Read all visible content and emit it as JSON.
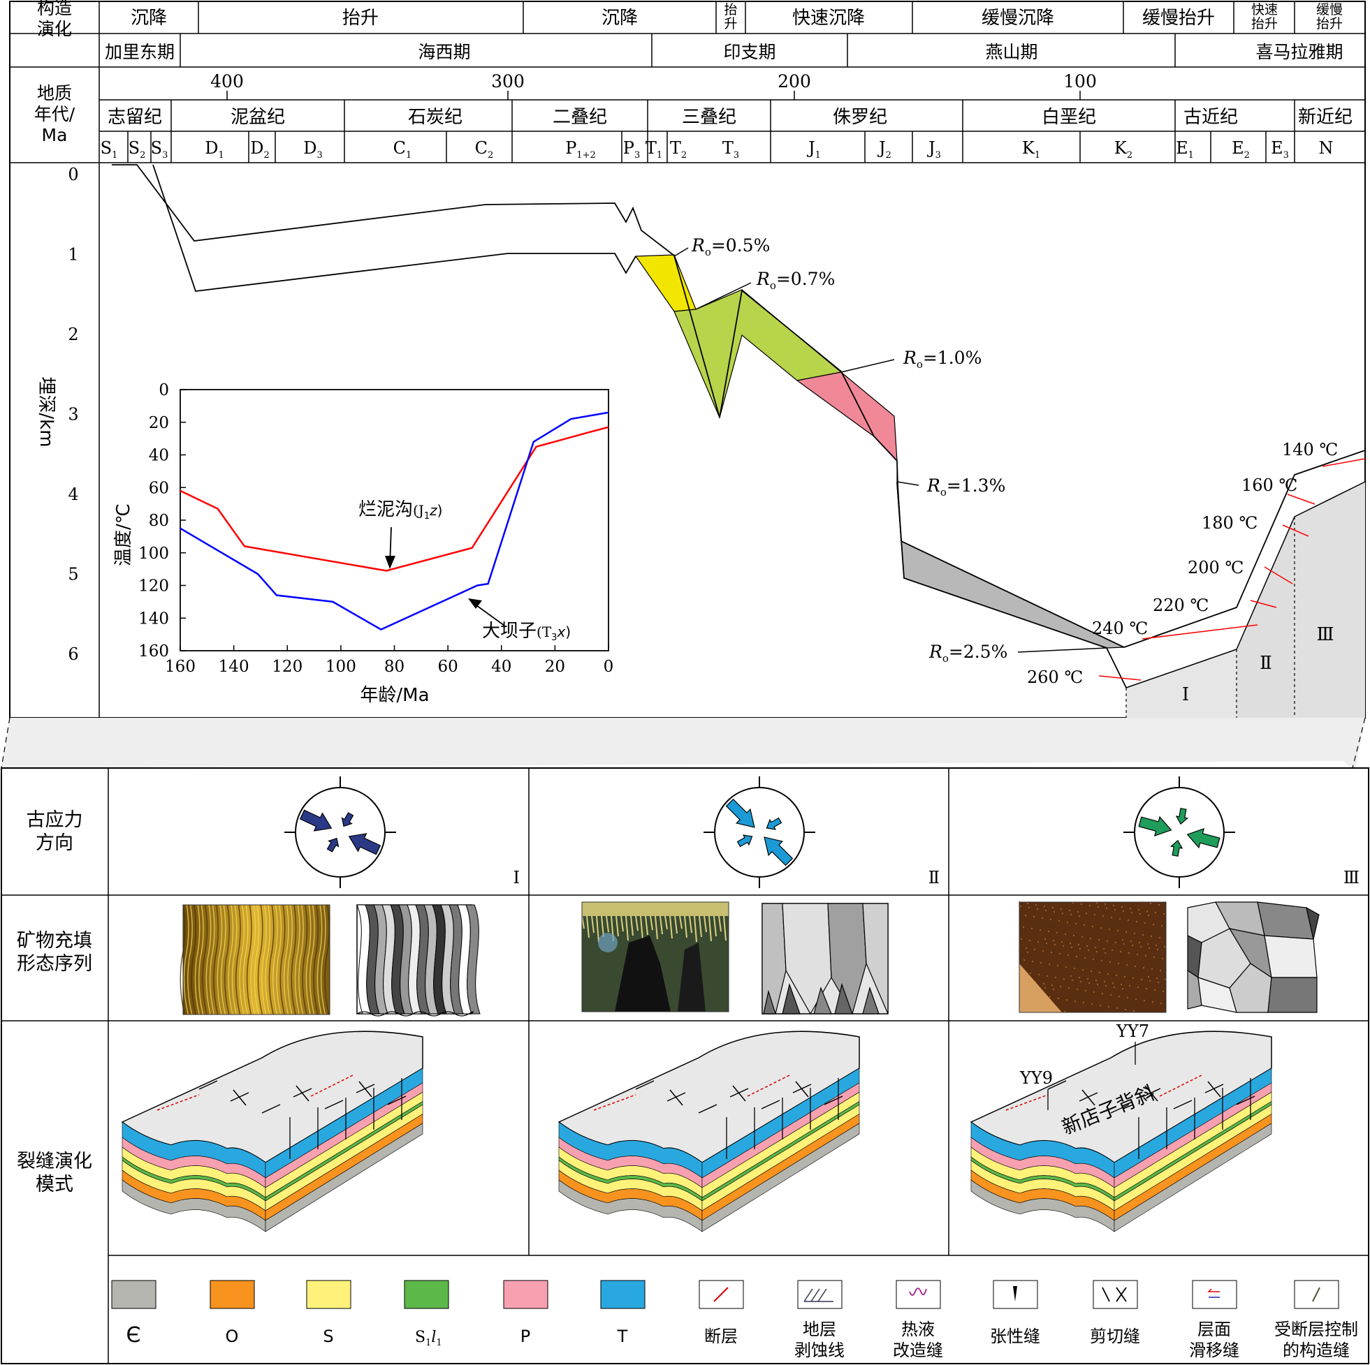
{
  "colors": {
    "ro05": "#f2e600",
    "ro07": "#b8d44a",
    "ro10": "#f08898",
    "ro13": "#b8b8b8",
    "red_curve": "#ff0000",
    "blue_curve": "#0000ff",
    "strat_cambrian": "#b5b5b0",
    "strat_O": "#f7931e",
    "strat_S": "#fff27a",
    "strat_S1l1": "#5cb848",
    "strat_P": "#f7a0b0",
    "strat_T": "#29a8e0",
    "stress_I": "#2b3a87",
    "stress_II": "#1b9ad6",
    "stress_III": "#1e9e5a"
  },
  "top_table": {
    "row1_header": "构造\n演化",
    "row1_cells": [
      "沉降",
      "抬升",
      "沉降",
      "抬\n升",
      "快速沉降",
      "缓慢沉降",
      "缓慢抬升",
      "快速\n抬升",
      "缓慢\n抬升"
    ],
    "row2_cells": [
      "加里东期",
      "海西期",
      "印支期",
      "燕山期",
      "喜马拉雅期"
    ],
    "time_header": "地质\n年代/\nMa",
    "age_ticks": [
      "400",
      "300",
      "200",
      "100"
    ],
    "periods": [
      "志留纪",
      "泥盆纪",
      "石炭纪",
      "二叠纪",
      "三叠纪",
      "侏罗纪",
      "白垩纪",
      "古近纪",
      "新近纪"
    ],
    "epochs": [
      "S1",
      "S2",
      "S3",
      "D1",
      "D2",
      "D3",
      "C1",
      "C2",
      "P1+2",
      "P3",
      "T1",
      "T2",
      "T3",
      "J1",
      "J2",
      "J3",
      "K1",
      "K2",
      "E1",
      "E2",
      "E3",
      "N"
    ]
  },
  "burial_chart": {
    "ylabel": "埋深/km",
    "yticks": [
      "0",
      "1",
      "2",
      "3",
      "4",
      "5",
      "6"
    ],
    "ro_labels": [
      "Ro=0.5%",
      "Ro=0.7%",
      "Ro=1.0%",
      "Ro=1.3%",
      "Ro=2.5%"
    ],
    "isotherms": [
      "140 ℃",
      "160 ℃",
      "180 ℃",
      "200 ℃",
      "220 ℃",
      "240 ℃",
      "260 ℃"
    ],
    "zones": [
      "Ⅰ",
      "Ⅱ",
      "Ⅲ"
    ]
  },
  "chart_data": {
    "type": "line",
    "xlabel": "年龄/Ma",
    "ylabel": "温度/℃",
    "xlim": [
      160,
      0
    ],
    "ylim": [
      160,
      0
    ],
    "xticks": [
      "160",
      "140",
      "120",
      "100",
      "80",
      "60",
      "40",
      "20",
      "0"
    ],
    "yticks": [
      "0",
      "20",
      "40",
      "60",
      "80",
      "100",
      "120",
      "140",
      "160"
    ],
    "series": [
      {
        "name": "烂泥沟(J1z)",
        "color": "#ff0000",
        "x": [
          160,
          146,
          136,
          83,
          51,
          27,
          18,
          7,
          0
        ],
        "y": [
          62,
          73,
          96,
          111,
          97,
          35,
          31,
          26,
          23
        ]
      },
      {
        "name": "大坝子(T3x)",
        "color": "#0000ff",
        "x": [
          160,
          131,
          124,
          103,
          85,
          49,
          45,
          28,
          14,
          0
        ],
        "y": [
          85,
          113,
          126,
          130,
          147,
          120,
          119,
          32,
          18,
          14
        ]
      }
    ],
    "annotations": [
      "烂泥沟(J1z)",
      "大坝子(T3x)"
    ]
  },
  "bottom_table": {
    "row_labels": [
      "古应力\n方向",
      "矿物充填\n形态序列",
      "裂缝演化\n模式"
    ],
    "columns": [
      "Ⅰ",
      "Ⅱ",
      "Ⅲ"
    ],
    "model_labels": [
      "YY7",
      "YY9",
      "新店子背斜"
    ]
  },
  "legend": [
    {
      "label": "Є",
      "color": "#b5b5b0"
    },
    {
      "label": "O",
      "color": "#f7931e"
    },
    {
      "label": "S",
      "color": "#fff27a"
    },
    {
      "label": "S1l1",
      "color": "#5cb848"
    },
    {
      "label": "P",
      "color": "#f7a0b0"
    },
    {
      "label": "T",
      "color": "#29a8e0"
    },
    {
      "label": "断层",
      "icon": "fault-icon"
    },
    {
      "label": "地层\n剥蚀线",
      "icon": "erosion-line-icon"
    },
    {
      "label": "热液\n改造缝",
      "icon": "hydrothermal-vein-icon"
    },
    {
      "label": "张性缝",
      "icon": "tension-fracture-icon"
    },
    {
      "label": "剪切缝",
      "icon": "shear-fracture-icon"
    },
    {
      "label": "层面\n滑移缝",
      "icon": "bedding-slip-icon"
    },
    {
      "label": "受断层控制\n的构造缝",
      "icon": "fault-controlled-fracture-icon"
    }
  ]
}
